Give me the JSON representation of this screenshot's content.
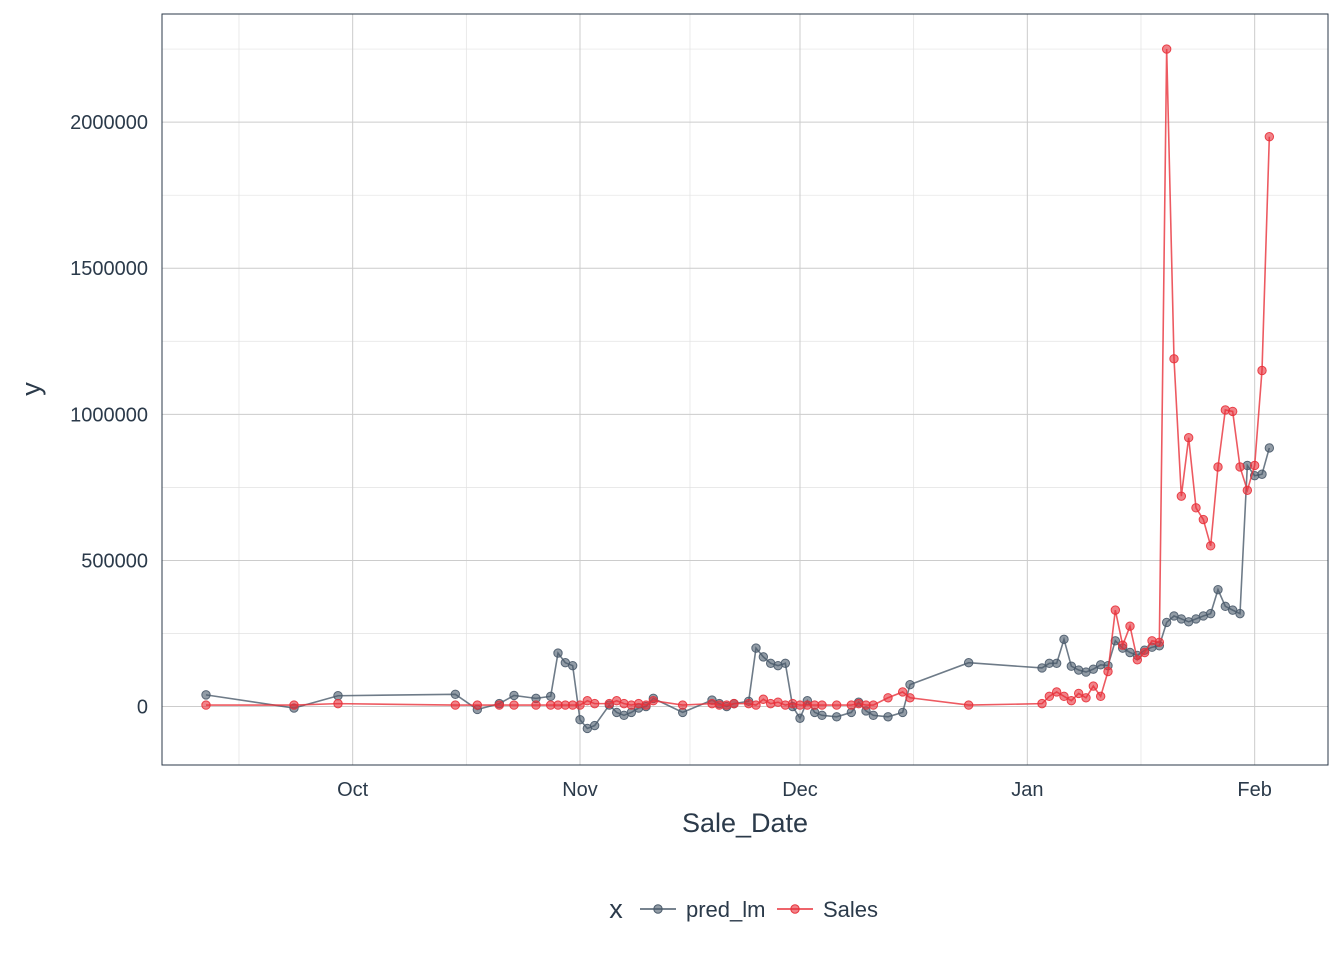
{
  "chart_data": {
    "type": "line",
    "xlabel": "Sale_Date",
    "ylabel": "y",
    "x_tick_labels": [
      {
        "label": "Oct",
        "date": "2021-10-01"
      },
      {
        "label": "Nov",
        "date": "2021-11-01"
      },
      {
        "label": "Dec",
        "date": "2021-12-01"
      },
      {
        "label": "Jan",
        "date": "2022-01-01"
      },
      {
        "label": "Feb",
        "date": "2022-02-01"
      }
    ],
    "y_ticks": [
      0,
      500000,
      1000000,
      1500000,
      2000000
    ],
    "y_tick_labels": [
      "0",
      "500000",
      "1000000",
      "1500000",
      "2000000"
    ],
    "xlim": [
      "2021-09-05",
      "2022-02-11"
    ],
    "ylim": [
      -200000,
      2370000
    ],
    "grid": true,
    "legend": {
      "title": "x",
      "position": "bottom"
    },
    "series": [
      {
        "name": "pred_lm",
        "color": "#4a5a6a",
        "points": [
          [
            "2021-09-11",
            40000
          ],
          [
            "2021-09-23",
            -5000
          ],
          [
            "2021-09-29",
            37000
          ],
          [
            "2021-10-15",
            42000
          ],
          [
            "2021-10-18",
            -10000
          ],
          [
            "2021-10-21",
            10000
          ],
          [
            "2021-10-23",
            38000
          ],
          [
            "2021-10-26",
            28000
          ],
          [
            "2021-10-28",
            35000
          ],
          [
            "2021-10-29",
            183000
          ],
          [
            "2021-10-30",
            150000
          ],
          [
            "2021-10-31",
            140000
          ],
          [
            "2021-11-01",
            -45000
          ],
          [
            "2021-11-02",
            -75000
          ],
          [
            "2021-11-03",
            -65000
          ],
          [
            "2021-11-05",
            5000
          ],
          [
            "2021-11-06",
            -20000
          ],
          [
            "2021-11-07",
            -30000
          ],
          [
            "2021-11-08",
            -20000
          ],
          [
            "2021-11-09",
            -5000
          ],
          [
            "2021-11-10",
            0
          ],
          [
            "2021-11-11",
            28000
          ],
          [
            "2021-11-15",
            -20000
          ],
          [
            "2021-11-19",
            22000
          ],
          [
            "2021-11-20",
            10000
          ],
          [
            "2021-11-21",
            0
          ],
          [
            "2021-11-22",
            10000
          ],
          [
            "2021-11-24",
            18000
          ],
          [
            "2021-11-25",
            200000
          ],
          [
            "2021-11-26",
            170000
          ],
          [
            "2021-11-27",
            148000
          ],
          [
            "2021-11-28",
            140000
          ],
          [
            "2021-11-29",
            148000
          ],
          [
            "2021-11-30",
            0
          ],
          [
            "2021-12-01",
            -40000
          ],
          [
            "2021-12-02",
            20000
          ],
          [
            "2021-12-03",
            -20000
          ],
          [
            "2021-12-04",
            -30000
          ],
          [
            "2021-12-06",
            -35000
          ],
          [
            "2021-12-08",
            -20000
          ],
          [
            "2021-12-09",
            15000
          ],
          [
            "2021-12-10",
            -15000
          ],
          [
            "2021-12-11",
            -30000
          ],
          [
            "2021-12-13",
            -35000
          ],
          [
            "2021-12-15",
            -20000
          ],
          [
            "2021-12-16",
            75000
          ],
          [
            "2021-12-24",
            150000
          ],
          [
            "2022-01-03",
            132000
          ],
          [
            "2022-01-04",
            148000
          ],
          [
            "2022-01-05",
            148000
          ],
          [
            "2022-01-06",
            230000
          ],
          [
            "2022-01-07",
            138000
          ],
          [
            "2022-01-08",
            125000
          ],
          [
            "2022-01-09",
            118000
          ],
          [
            "2022-01-10",
            128000
          ],
          [
            "2022-01-11",
            143000
          ],
          [
            "2022-01-12",
            140000
          ],
          [
            "2022-01-13",
            225000
          ],
          [
            "2022-01-14",
            200000
          ],
          [
            "2022-01-15",
            185000
          ],
          [
            "2022-01-16",
            175000
          ],
          [
            "2022-01-17",
            193000
          ],
          [
            "2022-01-18",
            203000
          ],
          [
            "2022-01-19",
            208000
          ],
          [
            "2022-01-20",
            288000
          ],
          [
            "2022-01-21",
            310000
          ],
          [
            "2022-01-22",
            300000
          ],
          [
            "2022-01-23",
            290000
          ],
          [
            "2022-01-24",
            300000
          ],
          [
            "2022-01-25",
            310000
          ],
          [
            "2022-01-26",
            318000
          ],
          [
            "2022-01-27",
            400000
          ],
          [
            "2022-01-28",
            343000
          ],
          [
            "2022-01-29",
            330000
          ],
          [
            "2022-01-30",
            318000
          ],
          [
            "2022-01-31",
            825000
          ],
          [
            "2022-02-01",
            790000
          ],
          [
            "2022-02-02",
            795000
          ],
          [
            "2022-02-03",
            885000
          ]
        ]
      },
      {
        "name": "Sales",
        "color": "#e8313a",
        "points": [
          [
            "2021-09-11",
            5000
          ],
          [
            "2021-09-23",
            5000
          ],
          [
            "2021-09-29",
            10000
          ],
          [
            "2021-10-15",
            5000
          ],
          [
            "2021-10-18",
            5000
          ],
          [
            "2021-10-21",
            5000
          ],
          [
            "2021-10-23",
            5000
          ],
          [
            "2021-10-26",
            5000
          ],
          [
            "2021-10-28",
            5000
          ],
          [
            "2021-10-29",
            5000
          ],
          [
            "2021-10-30",
            5000
          ],
          [
            "2021-10-31",
            5000
          ],
          [
            "2021-11-01",
            5000
          ],
          [
            "2021-11-02",
            20000
          ],
          [
            "2021-11-03",
            10000
          ],
          [
            "2021-11-05",
            10000
          ],
          [
            "2021-11-06",
            20000
          ],
          [
            "2021-11-07",
            10000
          ],
          [
            "2021-11-08",
            5000
          ],
          [
            "2021-11-09",
            10000
          ],
          [
            "2021-11-10",
            5000
          ],
          [
            "2021-11-11",
            20000
          ],
          [
            "2021-11-15",
            5000
          ],
          [
            "2021-11-19",
            10000
          ],
          [
            "2021-11-20",
            5000
          ],
          [
            "2021-11-21",
            5000
          ],
          [
            "2021-11-22",
            10000
          ],
          [
            "2021-11-24",
            10000
          ],
          [
            "2021-11-25",
            5000
          ],
          [
            "2021-11-26",
            25000
          ],
          [
            "2021-11-27",
            10000
          ],
          [
            "2021-11-28",
            15000
          ],
          [
            "2021-11-29",
            5000
          ],
          [
            "2021-11-30",
            10000
          ],
          [
            "2021-12-01",
            5000
          ],
          [
            "2021-12-02",
            5000
          ],
          [
            "2021-12-03",
            5000
          ],
          [
            "2021-12-04",
            5000
          ],
          [
            "2021-12-06",
            5000
          ],
          [
            "2021-12-08",
            5000
          ],
          [
            "2021-12-09",
            10000
          ],
          [
            "2021-12-10",
            5000
          ],
          [
            "2021-12-11",
            5000
          ],
          [
            "2021-12-13",
            30000
          ],
          [
            "2021-12-15",
            50000
          ],
          [
            "2021-12-16",
            30000
          ],
          [
            "2021-12-24",
            5000
          ],
          [
            "2022-01-03",
            10000
          ],
          [
            "2022-01-04",
            35000
          ],
          [
            "2022-01-05",
            50000
          ],
          [
            "2022-01-06",
            35000
          ],
          [
            "2022-01-07",
            20000
          ],
          [
            "2022-01-08",
            45000
          ],
          [
            "2022-01-09",
            30000
          ],
          [
            "2022-01-10",
            70000
          ],
          [
            "2022-01-11",
            35000
          ],
          [
            "2022-01-12",
            120000
          ],
          [
            "2022-01-13",
            330000
          ],
          [
            "2022-01-14",
            210000
          ],
          [
            "2022-01-15",
            275000
          ],
          [
            "2022-01-16",
            160000
          ],
          [
            "2022-01-17",
            185000
          ],
          [
            "2022-01-18",
            225000
          ],
          [
            "2022-01-19",
            220000
          ],
          [
            "2022-01-20",
            2250000
          ],
          [
            "2022-01-21",
            1190000
          ],
          [
            "2022-01-22",
            720000
          ],
          [
            "2022-01-23",
            920000
          ],
          [
            "2022-01-24",
            680000
          ],
          [
            "2022-01-25",
            640000
          ],
          [
            "2022-01-26",
            550000
          ],
          [
            "2022-01-27",
            820000
          ],
          [
            "2022-01-28",
            1015000
          ],
          [
            "2022-01-29",
            1010000
          ],
          [
            "2022-01-30",
            820000
          ],
          [
            "2022-01-31",
            740000
          ],
          [
            "2022-02-01",
            825000
          ],
          [
            "2022-02-02",
            1150000
          ],
          [
            "2022-02-03",
            1950000
          ]
        ]
      }
    ]
  }
}
